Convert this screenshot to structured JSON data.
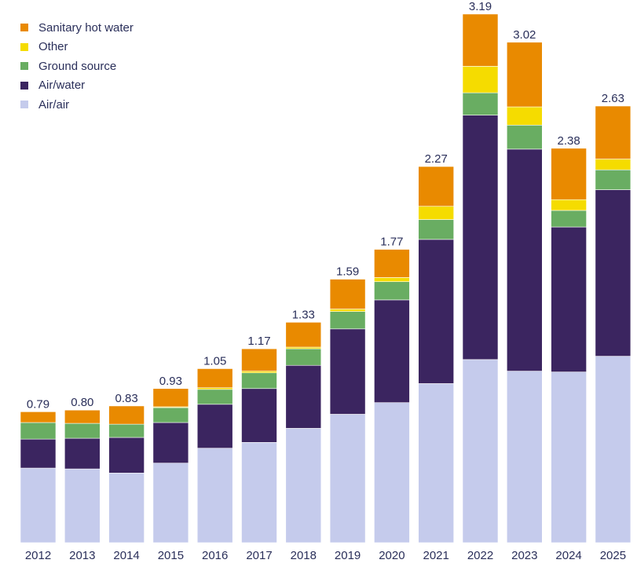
{
  "chart_data": {
    "type": "bar",
    "stacked": true,
    "title": "",
    "xlabel": "",
    "ylabel": "",
    "ylim": [
      0,
      3.2
    ],
    "grid": false,
    "legend_position": "top-left",
    "categories": [
      "2012",
      "2013",
      "2014",
      "2015",
      "2016",
      "2017",
      "2018",
      "2019",
      "2020",
      "2021",
      "2022",
      "2023",
      "2024",
      "2025"
    ],
    "totals": [
      "0.79",
      "0.80",
      "0.83",
      "0.93",
      "1.05",
      "1.17",
      "1.33",
      "1.59",
      "1.77",
      "2.27",
      "3.19",
      "3.02",
      "2.38",
      "2.63"
    ],
    "series": [
      {
        "name": "Air/air",
        "color": "#c5cbec",
        "values": [
          0.45,
          0.445,
          0.42,
          0.48,
          0.57,
          0.605,
          0.69,
          0.775,
          0.845,
          0.96,
          1.105,
          1.035,
          1.03,
          1.125
        ]
      },
      {
        "name": "Air/water",
        "color": "#3b2560",
        "values": [
          0.175,
          0.185,
          0.215,
          0.245,
          0.265,
          0.325,
          0.38,
          0.515,
          0.62,
          0.87,
          1.475,
          1.34,
          0.875,
          1.005
        ]
      },
      {
        "name": "Ground source",
        "color": "#69ad62",
        "values": [
          0.1,
          0.09,
          0.08,
          0.09,
          0.09,
          0.095,
          0.1,
          0.105,
          0.11,
          0.12,
          0.135,
          0.145,
          0.1,
          0.12
        ]
      },
      {
        "name": "Other",
        "color": "#f5dc00",
        "values": [
          0,
          0,
          0,
          0.005,
          0.01,
          0.01,
          0.01,
          0.015,
          0.025,
          0.08,
          0.16,
          0.11,
          0.065,
          0.065
        ]
      },
      {
        "name": "Sanitary hot water",
        "color": "#e98a00",
        "values": [
          0.065,
          0.08,
          0.11,
          0.11,
          0.115,
          0.135,
          0.15,
          0.18,
          0.17,
          0.24,
          0.315,
          0.39,
          0.31,
          0.32
        ]
      }
    ],
    "legend_order": [
      "Sanitary hot water",
      "Other",
      "Ground source",
      "Air/water",
      "Air/air"
    ]
  }
}
